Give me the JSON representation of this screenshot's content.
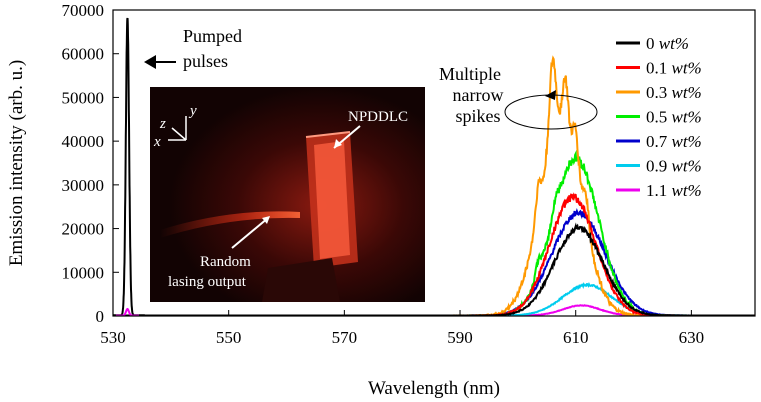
{
  "chart_data": {
    "type": "line",
    "title": "",
    "xlabel": "Wavelength (nm)",
    "ylabel": "Emission intensity (arb. u.)",
    "xlim": [
      530,
      641
    ],
    "ylim": [
      0,
      70000
    ],
    "x_ticks": [
      530,
      550,
      570,
      590,
      610,
      630
    ],
    "y_ticks": [
      0,
      10000,
      20000,
      30000,
      40000,
      50000,
      60000,
      70000
    ],
    "grid": false,
    "legend_position": "top-right",
    "pump": {
      "label_line1": "Pumped",
      "label_line2": "pulses",
      "center_nm": 532.5,
      "peak": 68000,
      "width_nm": 0.28,
      "series_name": "0 wt%"
    },
    "series": [
      {
        "name_prefix": "0 ",
        "name_unit": "wt%",
        "color": "#000000",
        "center": 610.5,
        "peak": 20000,
        "sigma": 4.2,
        "spikes": []
      },
      {
        "name_prefix": "0.1 ",
        "name_unit": "wt%",
        "color": "#ff0000",
        "center": 609.5,
        "peak": 27000,
        "sigma": 4.0,
        "spikes": []
      },
      {
        "name_prefix": "0.3 ",
        "name_unit": "wt%",
        "color": "#ff9900",
        "center": 607.5,
        "peak": 44000,
        "sigma": 3.6,
        "spikes": [
          [
            603.5,
            6000,
            0.45
          ],
          [
            606.0,
            18000,
            0.55
          ],
          [
            608.2,
            11000,
            0.5
          ],
          [
            610.0,
            8000,
            0.45
          ],
          [
            611.8,
            6000,
            0.5
          ]
        ]
      },
      {
        "name_prefix": "0.5 ",
        "name_unit": "wt%",
        "color": "#00ee00",
        "center": 610.0,
        "peak": 36000,
        "sigma": 4.0,
        "spikes": [
          [
            603.5,
            3000,
            0.5
          ],
          [
            606.5,
            2500,
            0.5
          ]
        ]
      },
      {
        "name_prefix": "0.7 ",
        "name_unit": "wt%",
        "color": "#0000cc",
        "center": 610.5,
        "peak": 23500,
        "sigma": 4.6,
        "spikes": []
      },
      {
        "name_prefix": "0.9 ",
        "name_unit": "wt%",
        "color": "#00ccee",
        "center": 612.0,
        "peak": 7000,
        "sigma": 4.2,
        "spikes": []
      },
      {
        "name_prefix": "1.1 ",
        "name_unit": "wt%",
        "color": "#ee00ee",
        "center": 611.0,
        "peak": 2300,
        "sigma": 3.2,
        "spikes": []
      }
    ],
    "annotations": {
      "spikes_line1": "Multiple",
      "spikes_line2": "narrow",
      "spikes_line3": "spikes"
    },
    "inset_photo": {
      "label_sample": "NPDDLC",
      "label_output_line1": "Random",
      "label_output_line2": "lasing output",
      "axis_x": "x",
      "axis_y": "y",
      "axis_z": "z"
    }
  }
}
